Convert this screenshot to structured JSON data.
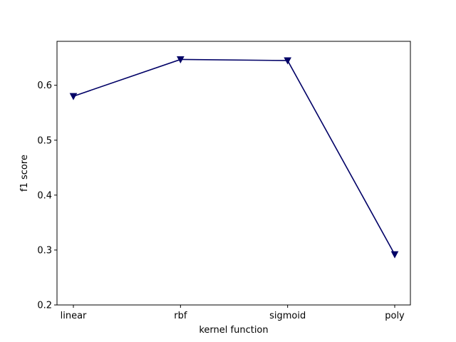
{
  "chart_data": {
    "type": "line",
    "title": "",
    "xlabel": "kernel function",
    "ylabel": "f1 score",
    "categories": [
      "linear",
      "rbf",
      "sigmoid",
      "poly"
    ],
    "series": [
      {
        "values": [
          0.58,
          0.647,
          0.645,
          0.292
        ],
        "color": "#000066",
        "marker": "triangle-down"
      }
    ],
    "ylim": [
      0.2,
      0.68
    ],
    "yticks": [
      "0.2",
      "0.3",
      "0.4",
      "0.5",
      "0.6"
    ],
    "grid": false,
    "legend": "none"
  }
}
